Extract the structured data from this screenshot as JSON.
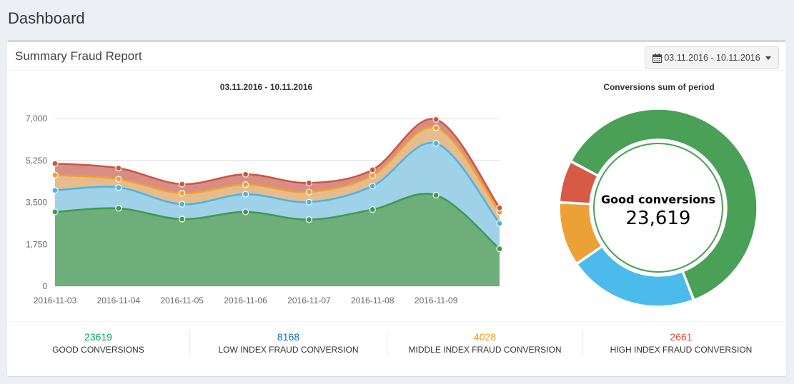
{
  "page": {
    "title": "Dashboard"
  },
  "box": {
    "title": "Summary Fraud Report",
    "date_range": "03.11.2016 - 10.11.2016"
  },
  "donut": {
    "title": "Conversions sum of period",
    "center_label": "Good conversions",
    "center_value": "23,619"
  },
  "stats": [
    {
      "value": "23619",
      "label": "GOOD CONVERSIONS",
      "color": "#00a65a"
    },
    {
      "value": "8168",
      "label": "LOW INDEX FRAUD CONVERSION",
      "color": "#0073b7"
    },
    {
      "value": "4028",
      "label": "MIDDLE INDEX FRAUD CONVERSION",
      "color": "#f39c12"
    },
    {
      "value": "2661",
      "label": "HIGH INDEX FRAUD CONVERSION",
      "color": "#dd4b39"
    }
  ],
  "chart_data": [
    {
      "type": "area",
      "stacked": true,
      "title": "03.11.2016 - 10.11.2016",
      "categories": [
        "2016-11-03",
        "2016-11-04",
        "2016-11-05",
        "2016-11-06",
        "2016-11-07",
        "2016-11-08",
        "2016-11-09",
        "2016-11-10"
      ],
      "x_tick_labels": [
        "2016-11-03",
        "2016-11-04",
        "2016-11-05",
        "2016-11-06",
        "2016-11-07",
        "2016-11-08",
        "2016-11-09"
      ],
      "y_ticks": [
        "0",
        "1,750",
        "3,500",
        "5,250",
        "7,000"
      ],
      "y_tick_values": [
        0,
        1750,
        3500,
        5250,
        7000
      ],
      "ylim": [
        0,
        7000
      ],
      "series": [
        {
          "name": "Good conversions",
          "color": "#3d9a4e",
          "fill": "#6dae7a",
          "values": [
            3100,
            3250,
            2800,
            3100,
            2780,
            3200,
            3800,
            1560
          ]
        },
        {
          "name": "Low index fraud conversion",
          "color": "#45b5e8",
          "fill": "#9fd2e9",
          "values": [
            900,
            870,
            620,
            740,
            730,
            980,
            2160,
            1060
          ]
        },
        {
          "name": "Middle index fraud conversion",
          "color": "#f0a030",
          "fill": "#e6bc8c",
          "values": [
            640,
            350,
            460,
            400,
            420,
            440,
            650,
            470
          ]
        },
        {
          "name": "High index fraud conversion",
          "color": "#cc5544",
          "fill": "#d98e84",
          "values": [
            480,
            460,
            380,
            430,
            380,
            240,
            350,
            180
          ]
        }
      ]
    },
    {
      "type": "pie",
      "title": "Conversions sum of period",
      "labels": [
        "Good conversions",
        "Low index fraud conversion",
        "Middle index fraud conversion",
        "High index fraud conversion"
      ],
      "values": [
        23619,
        8168,
        4028,
        2661
      ],
      "colors": [
        "#4aa057",
        "#4bbbeb",
        "#eba135",
        "#d75a46"
      ]
    }
  ]
}
